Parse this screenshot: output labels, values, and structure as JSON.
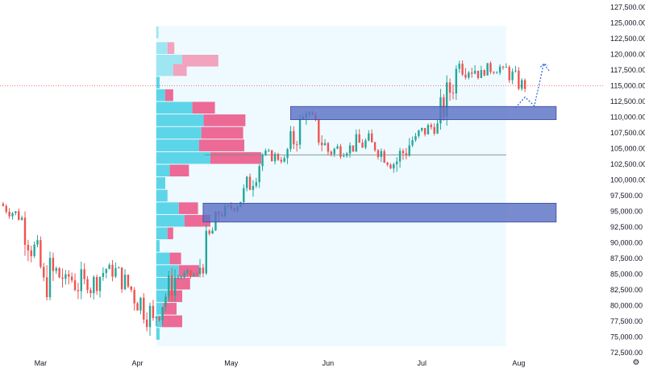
{
  "colors": {
    "background": "#ffffff",
    "up_candle": "#26a69a",
    "down_candle": "#ef5350",
    "volume_profile_up": "#5dd5e8",
    "volume_profile_down": "#ec6a95",
    "volume_profile_up_light": "#9ee6f2",
    "volume_profile_down_light": "#f2a3bd",
    "volume_range_fill": "#eefaff",
    "zone_fill": "#5c72c4",
    "zone_border": "#3a4a9e",
    "poc_line": "#7a8a86",
    "price_line": "#ef5350",
    "projection": "#2f6fe0",
    "axis_text": "#131722"
  },
  "icons": {
    "settings": "gear-icon"
  },
  "chart_data": {
    "type": "candlestick",
    "title": "",
    "xlabel": "",
    "ylabel": "",
    "ylim": [
      72500,
      127500
    ],
    "x_tick_labels": [
      "Mar",
      "Apr",
      "May",
      "Jun",
      "Jul",
      "Aug"
    ],
    "y_tick_labels": [
      "127,500.00",
      "125,000.00",
      "122,500.00",
      "120,000.00",
      "117,500.00",
      "115,000.00",
      "112,500.00",
      "110,000.00",
      "107,500.00",
      "105,000.00",
      "102,500.00",
      "100,000.00",
      "97,500.00",
      "95,000.00",
      "92,500.00",
      "90,000.00",
      "87,500.00",
      "85,000.00",
      "82,500.00",
      "80,000.00",
      "77,500.00",
      "75,000.00",
      "72,500.00"
    ],
    "grid": false,
    "x_domain": [
      "2025-02-16",
      "2025-08-28"
    ],
    "candles_weekly_summary": [
      {
        "week_of": "2025-02-17",
        "open": 96200,
        "high": 96500,
        "low": 92000,
        "close": 94000
      },
      {
        "week_of": "2025-02-24",
        "open": 94000,
        "high": 95000,
        "low": 83000,
        "close": 84500
      },
      {
        "week_of": "2025-03-03",
        "open": 84500,
        "high": 94000,
        "low": 80000,
        "close": 85000
      },
      {
        "week_of": "2025-03-10",
        "open": 85000,
        "high": 87000,
        "low": 77000,
        "close": 82500
      },
      {
        "week_of": "2025-03-17",
        "open": 82500,
        "high": 87500,
        "low": 80500,
        "close": 86500
      },
      {
        "week_of": "2025-03-24",
        "open": 86500,
        "high": 88500,
        "low": 81500,
        "close": 82500
      },
      {
        "week_of": "2025-03-31",
        "open": 82500,
        "high": 84500,
        "low": 74500,
        "close": 78000
      },
      {
        "week_of": "2025-04-07",
        "open": 78000,
        "high": 86000,
        "low": 76500,
        "close": 84500
      },
      {
        "week_of": "2025-04-14",
        "open": 84500,
        "high": 86500,
        "low": 83500,
        "close": 85000
      },
      {
        "week_of": "2025-04-21",
        "open": 85000,
        "high": 95000,
        "low": 84500,
        "close": 94500
      },
      {
        "week_of": "2025-04-28",
        "open": 94500,
        "high": 97000,
        "low": 93500,
        "close": 96500
      },
      {
        "week_of": "2025-05-05",
        "open": 96500,
        "high": 104500,
        "low": 96000,
        "close": 104000
      },
      {
        "week_of": "2025-05-12",
        "open": 104000,
        "high": 105000,
        "low": 101500,
        "close": 103500
      },
      {
        "week_of": "2025-05-19",
        "open": 103500,
        "high": 111500,
        "low": 102500,
        "close": 110500
      },
      {
        "week_of": "2025-05-26",
        "open": 110500,
        "high": 111000,
        "low": 103000,
        "close": 104500
      },
      {
        "week_of": "2025-06-02",
        "open": 104500,
        "high": 106000,
        "low": 101000,
        "close": 105500
      },
      {
        "week_of": "2025-06-09",
        "open": 105500,
        "high": 110500,
        "low": 104500,
        "close": 106000
      },
      {
        "week_of": "2025-06-16",
        "open": 106000,
        "high": 106500,
        "low": 101000,
        "close": 102500
      },
      {
        "week_of": "2025-06-23",
        "open": 102500,
        "high": 107500,
        "low": 98500,
        "close": 107000
      },
      {
        "week_of": "2025-06-30",
        "open": 107000,
        "high": 110000,
        "low": 105000,
        "close": 109000
      },
      {
        "week_of": "2025-07-07",
        "open": 109000,
        "high": 119000,
        "low": 108000,
        "close": 118500
      },
      {
        "week_of": "2025-07-14",
        "open": 118500,
        "high": 123000,
        "low": 116000,
        "close": 117500
      },
      {
        "week_of": "2025-07-21",
        "open": 117500,
        "high": 120000,
        "low": 116500,
        "close": 118000
      },
      {
        "week_of": "2025-07-28",
        "open": 118000,
        "high": 119500,
        "low": 114000,
        "close": 114500
      }
    ],
    "volume_profile": {
      "range_start": "2025-04-07",
      "range_end": "2025-07-28",
      "poc_price": 104000,
      "rows": [
        {
          "price": 123500,
          "up": 0.02,
          "down": 0.0
        },
        {
          "price": 121000,
          "up": 0.1,
          "down": 0.06
        },
        {
          "price": 119000,
          "up": 0.23,
          "down": 0.32
        },
        {
          "price": 117500,
          "up": 0.15,
          "down": 0.12
        },
        {
          "price": 115500,
          "up": 0.03,
          "down": 0.0
        },
        {
          "price": 113500,
          "up": 0.08,
          "down": 0.07
        },
        {
          "price": 111500,
          "up": 0.32,
          "down": 0.2
        },
        {
          "price": 109500,
          "up": 0.42,
          "down": 0.37
        },
        {
          "price": 107500,
          "up": 0.4,
          "down": 0.37
        },
        {
          "price": 105500,
          "up": 0.38,
          "down": 0.4
        },
        {
          "price": 103500,
          "up": 0.48,
          "down": 0.45
        },
        {
          "price": 101500,
          "up": 0.12,
          "down": 0.17
        },
        {
          "price": 99500,
          "up": 0.08,
          "down": 0.0
        },
        {
          "price": 97500,
          "up": 0.1,
          "down": 0.0
        },
        {
          "price": 95500,
          "up": 0.2,
          "down": 0.17
        },
        {
          "price": 93500,
          "up": 0.25,
          "down": 0.23
        },
        {
          "price": 91500,
          "up": 0.1,
          "down": 0.05
        },
        {
          "price": 89500,
          "up": 0.03,
          "down": 0.0
        },
        {
          "price": 87500,
          "up": 0.12,
          "down": 0.1
        },
        {
          "price": 85500,
          "up": 0.2,
          "down": 0.18
        },
        {
          "price": 83500,
          "up": 0.16,
          "down": 0.14
        },
        {
          "price": 81500,
          "up": 0.1,
          "down": 0.13
        },
        {
          "price": 79500,
          "up": 0.06,
          "down": 0.12
        },
        {
          "price": 77500,
          "up": 0.05,
          "down": 0.18
        },
        {
          "price": 75500,
          "up": 0.03,
          "down": 0.0
        }
      ]
    },
    "zones": [
      {
        "name": "upper-zone",
        "start": "2025-05-20",
        "end": "2025-08-13",
        "top": 111700,
        "bottom": 109600
      },
      {
        "name": "lower-zone",
        "start": "2025-04-22",
        "end": "2025-08-13",
        "top": 96300,
        "bottom": 93300
      }
    ],
    "current_price_line": 115000,
    "projection_path": [
      {
        "date": "2025-07-31",
        "price": 111500
      },
      {
        "date": "2025-08-03",
        "price": 113200
      },
      {
        "date": "2025-08-06",
        "price": 111800
      },
      {
        "date": "2025-08-09",
        "price": 118500
      },
      {
        "date": "2025-08-11",
        "price": 117200
      }
    ]
  }
}
